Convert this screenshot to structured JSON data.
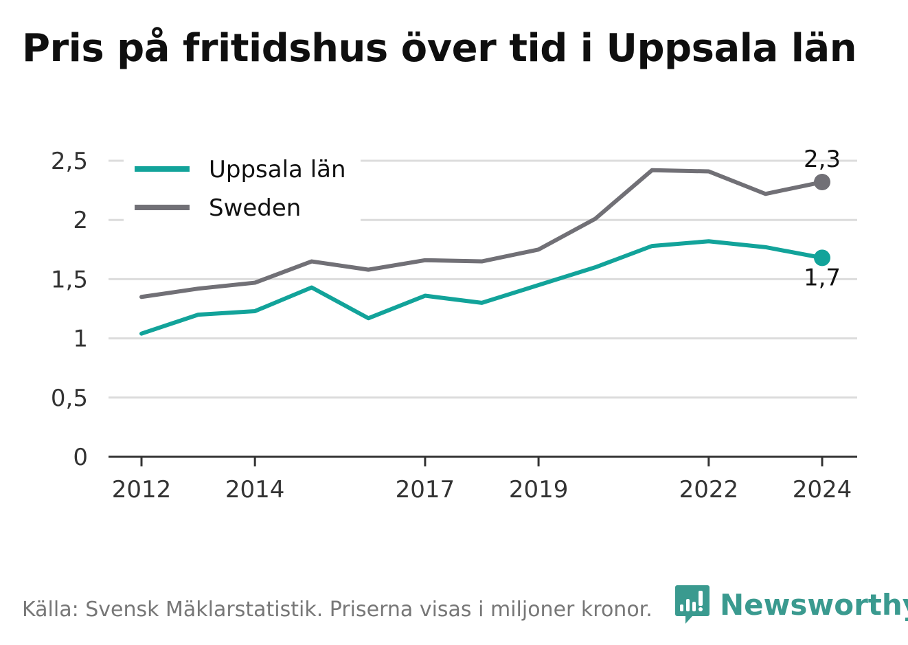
{
  "title": "Pris på fritidshus över tid i Uppsala län",
  "source": "Källa: Svensk Mäklarstatistik. Priserna visas i miljoner kronor.",
  "brand": {
    "name": "Newsworthy",
    "icon": "newsworthy-logo-icon",
    "color": "#3a9a8f"
  },
  "chart_data": {
    "type": "line",
    "title": "Pris på fritidshus över tid i Uppsala län",
    "xlabel": "",
    "ylabel": "",
    "ylim": [
      0,
      2.5
    ],
    "yticks": [
      0,
      0.5,
      1,
      1.5,
      2,
      2.5
    ],
    "ytick_labels": [
      "0",
      "0,5",
      "1",
      "1,5",
      "2",
      "2,5"
    ],
    "xlim": [
      2012,
      2024
    ],
    "xticks": [
      2012,
      2014,
      2017,
      2019,
      2022,
      2024
    ],
    "xtick_labels": [
      "2012",
      "2014",
      "2017",
      "2019",
      "2022",
      "2024"
    ],
    "x": [
      2012,
      2013,
      2014,
      2015,
      2016,
      2017,
      2018,
      2019,
      2020,
      2021,
      2022,
      2023,
      2024
    ],
    "grid": "horizontal",
    "legend": "top-left",
    "series": [
      {
        "name": "Uppsala län",
        "color": "#12a39a",
        "values": [
          1.04,
          1.2,
          1.23,
          1.43,
          1.17,
          1.36,
          1.3,
          1.45,
          1.6,
          1.78,
          1.82,
          1.77,
          1.68
        ],
        "end_label": "1,7"
      },
      {
        "name": "Sweden",
        "color": "#717076",
        "values": [
          1.35,
          1.42,
          1.47,
          1.65,
          1.58,
          1.66,
          1.65,
          1.75,
          2.01,
          2.42,
          2.41,
          2.22,
          2.32
        ],
        "end_label": "2,3"
      }
    ]
  }
}
